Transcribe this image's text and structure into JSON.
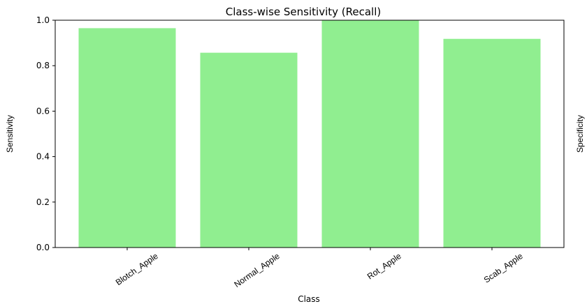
{
  "chart_data": {
    "type": "bar",
    "title": "Class-wise Sensitivity (Recall)",
    "xlabel": "Class",
    "ylabel": "Sensitivity",
    "categories": [
      "Blotch_Apple",
      "Normal_Apple",
      "Rot_Apple",
      "Scab_Apple"
    ],
    "values": [
      0.965,
      0.857,
      1.0,
      0.918
    ],
    "ylim": [
      0.0,
      1.0
    ],
    "yticks": [
      "0.0",
      "0.2",
      "0.4",
      "0.6",
      "0.8",
      "1.0"
    ],
    "bar_color": "#90EE90",
    "grid": false,
    "legend": "none"
  },
  "neighbor_chart": {
    "ylabel": "Specificity"
  }
}
